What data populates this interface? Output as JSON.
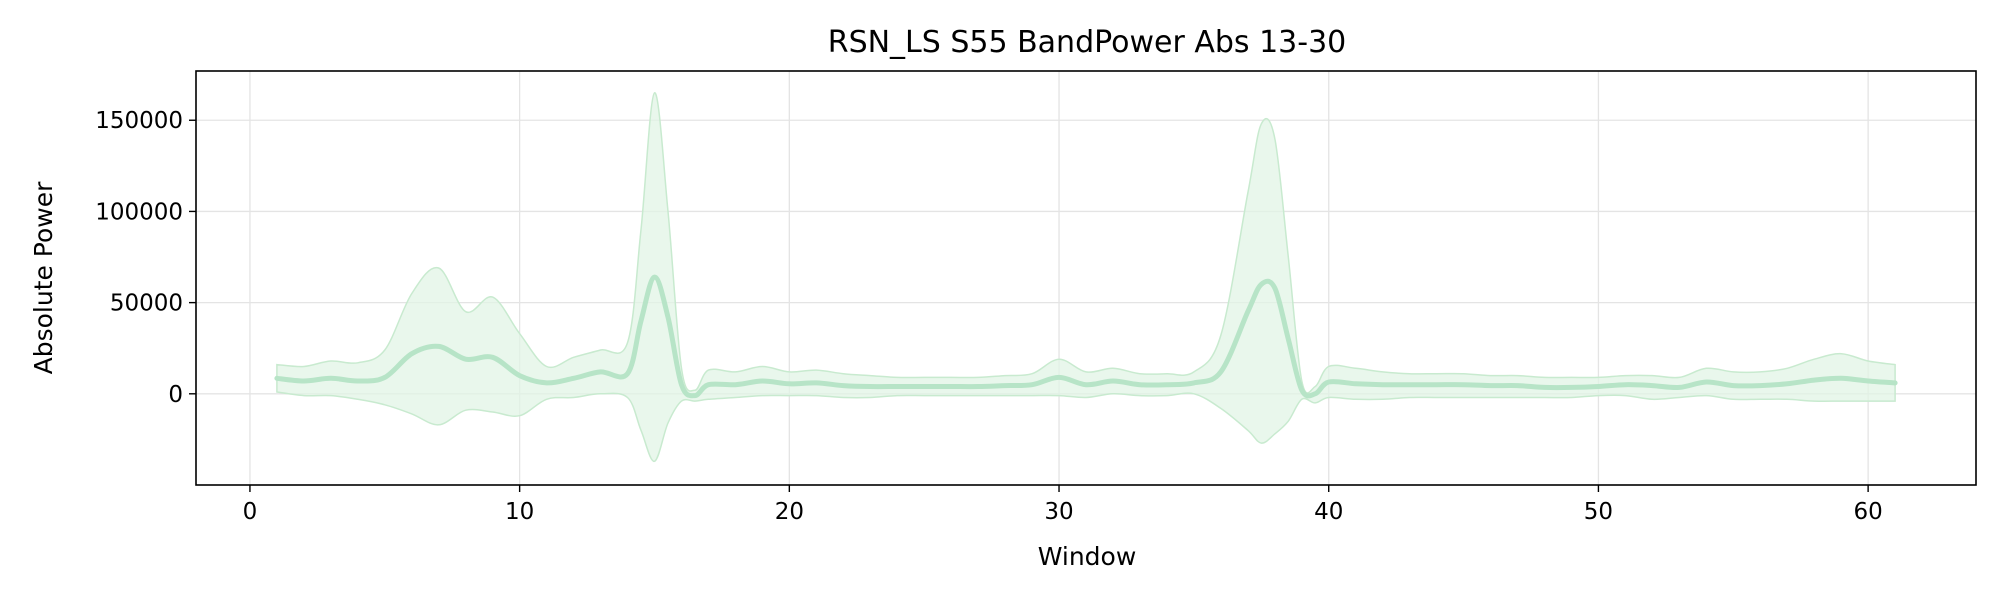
{
  "chart_data": {
    "type": "line",
    "title": "RSN_LS S55 BandPower Abs 13-30",
    "xlabel": "Window",
    "ylabel": "Absolute Power",
    "xlim": [
      -2,
      64
    ],
    "ylim": [
      -50000,
      177000
    ],
    "xticks": [
      0,
      10,
      20,
      30,
      40,
      50,
      60
    ],
    "xtick_labels": [
      "0",
      "10",
      "20",
      "30",
      "40",
      "50",
      "60"
    ],
    "yticks": [
      0,
      50000,
      100000,
      150000
    ],
    "ytick_labels": [
      "0",
      "50000",
      "100000",
      "150000"
    ],
    "grid": true,
    "legend": "none",
    "colors": {
      "line": "#b7e4c7",
      "band": "#e2f4e6",
      "band_edge": "#c8eacf"
    },
    "series": [
      {
        "x": [
          1,
          2,
          3,
          4,
          5,
          6,
          7,
          8,
          9,
          10,
          11,
          12,
          13,
          14,
          14.5,
          15,
          15.5,
          16,
          16.5,
          17,
          18,
          19,
          20,
          21,
          22,
          23,
          24,
          25,
          26,
          27,
          28,
          29,
          30,
          31,
          32,
          33,
          34,
          35,
          36,
          37,
          37.5,
          38,
          38.5,
          39,
          39.5,
          40,
          41,
          42,
          43,
          44,
          45,
          46,
          47,
          48,
          49,
          50,
          51,
          52,
          53,
          54,
          55,
          56,
          57,
          58,
          59,
          60,
          61
        ],
        "y": [
          8500,
          7000,
          8500,
          7000,
          9000,
          22000,
          26000,
          19000,
          20000,
          10000,
          6000,
          8500,
          12000,
          11000,
          40000,
          64000,
          42000,
          5000,
          -1000,
          5000,
          5000,
          7000,
          5500,
          6000,
          4500,
          4000,
          4000,
          4000,
          4000,
          4000,
          4500,
          5000,
          9000,
          5000,
          7000,
          5000,
          5000,
          6000,
          12000,
          45000,
          60000,
          58000,
          30000,
          2000,
          0,
          6500,
          5500,
          5000,
          5000,
          5000,
          5000,
          4500,
          4500,
          3500,
          3500,
          4000,
          5000,
          4500,
          3500,
          6500,
          4500,
          4500,
          5500,
          7500,
          8500,
          7000,
          6000
        ],
        "upper": [
          16000,
          15000,
          18000,
          17000,
          24000,
          55000,
          69000,
          45000,
          53000,
          33000,
          15000,
          20000,
          24000,
          28000,
          90000,
          165000,
          100000,
          14000,
          2000,
          13000,
          12000,
          15000,
          12000,
          13000,
          11000,
          10000,
          9000,
          9000,
          9000,
          9000,
          10000,
          11000,
          19000,
          12000,
          14000,
          11000,
          11000,
          12000,
          32000,
          110000,
          148000,
          140000,
          75000,
          7000,
          4000,
          15000,
          14000,
          12000,
          11000,
          11000,
          11000,
          10000,
          10000,
          9000,
          9000,
          9000,
          10000,
          10000,
          9000,
          14000,
          12000,
          12000,
          14000,
          19000,
          22000,
          18000,
          16000
        ],
        "lower": [
          1000,
          -1000,
          -1000,
          -3000,
          -6000,
          -11000,
          -17000,
          -9000,
          -10000,
          -12000,
          -3000,
          -2000,
          0,
          -2000,
          -20000,
          -37000,
          -16000,
          -4000,
          -4000,
          -3000,
          -2000,
          -1000,
          -1000,
          -1000,
          -2000,
          -2000,
          -1000,
          -1000,
          -1000,
          -1000,
          -1000,
          -1000,
          -1000,
          -2000,
          0,
          -1000,
          -1000,
          0,
          -8000,
          -20000,
          -27000,
          -22000,
          -15000,
          -3000,
          -5000,
          -2000,
          -3000,
          -3000,
          -2000,
          -2000,
          -2000,
          -2000,
          -2000,
          -2000,
          -2000,
          -1000,
          -1000,
          -3000,
          -2000,
          -1000,
          -3000,
          -3000,
          -3000,
          -4000,
          -4000,
          -4000,
          -4000
        ]
      }
    ]
  }
}
